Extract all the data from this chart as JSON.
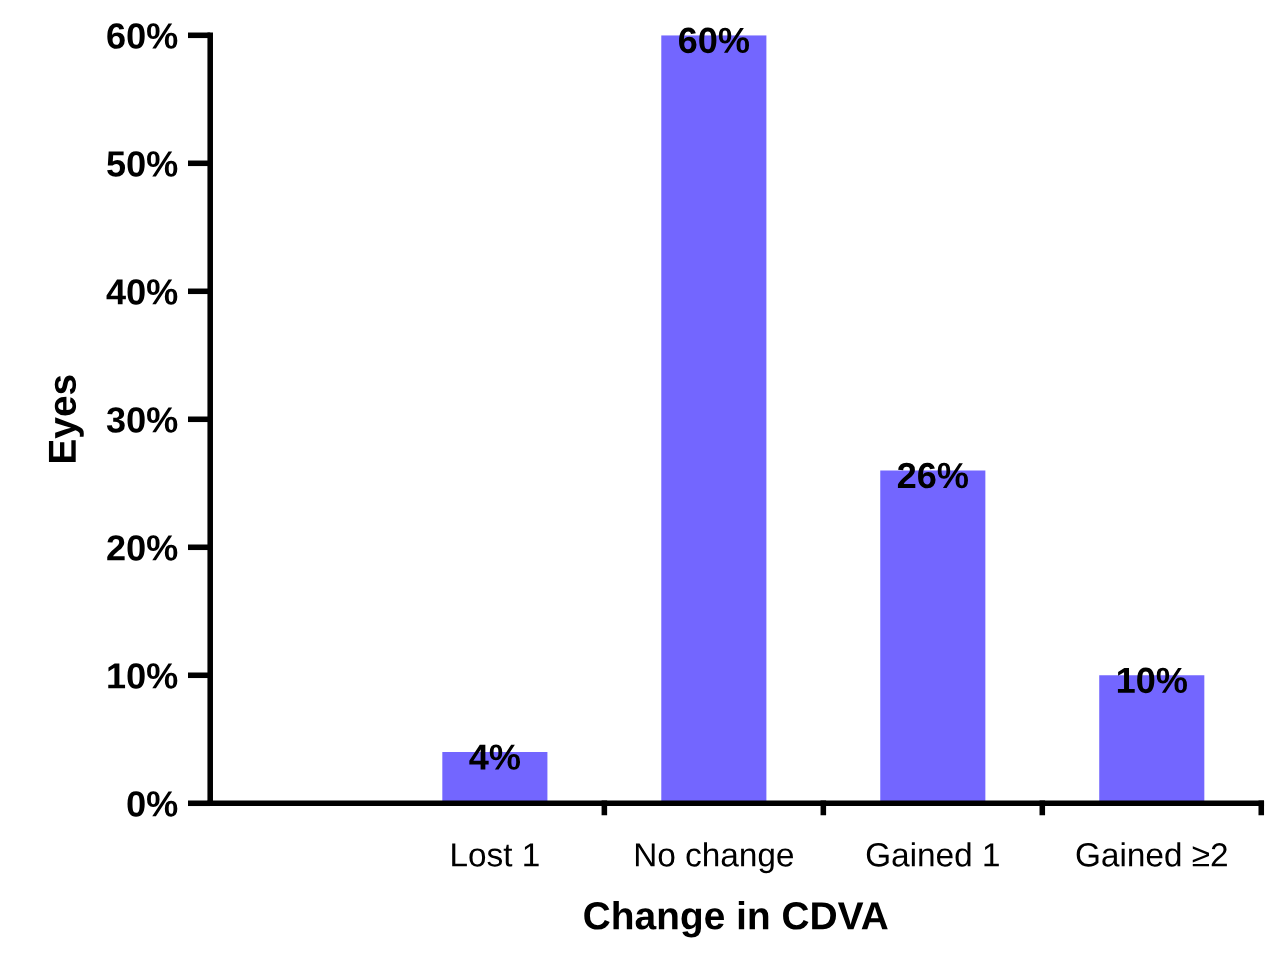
{
  "chart_data": {
    "type": "bar",
    "xlabel": "Change in CDVA",
    "ylabel": "Eyes",
    "categories": [
      "Lost 1",
      "No change",
      "Gained 1",
      "Gained ≥2"
    ],
    "values": [
      4,
      60,
      26,
      10
    ],
    "color": "#7366ff",
    "value_labels": [
      "4%",
      "60%",
      "26%",
      "10%"
    ],
    "ylim": [
      0,
      60
    ],
    "yticks": [
      {
        "value": 0,
        "label": "0%"
      },
      {
        "value": 10,
        "label": "10%"
      },
      {
        "value": 20,
        "label": "20%"
      },
      {
        "value": 30,
        "label": "30%"
      },
      {
        "value": 40,
        "label": "40%"
      },
      {
        "value": 50,
        "label": "50%"
      },
      {
        "value": 60,
        "label": "60%"
      }
    ],
    "grid": false
  }
}
